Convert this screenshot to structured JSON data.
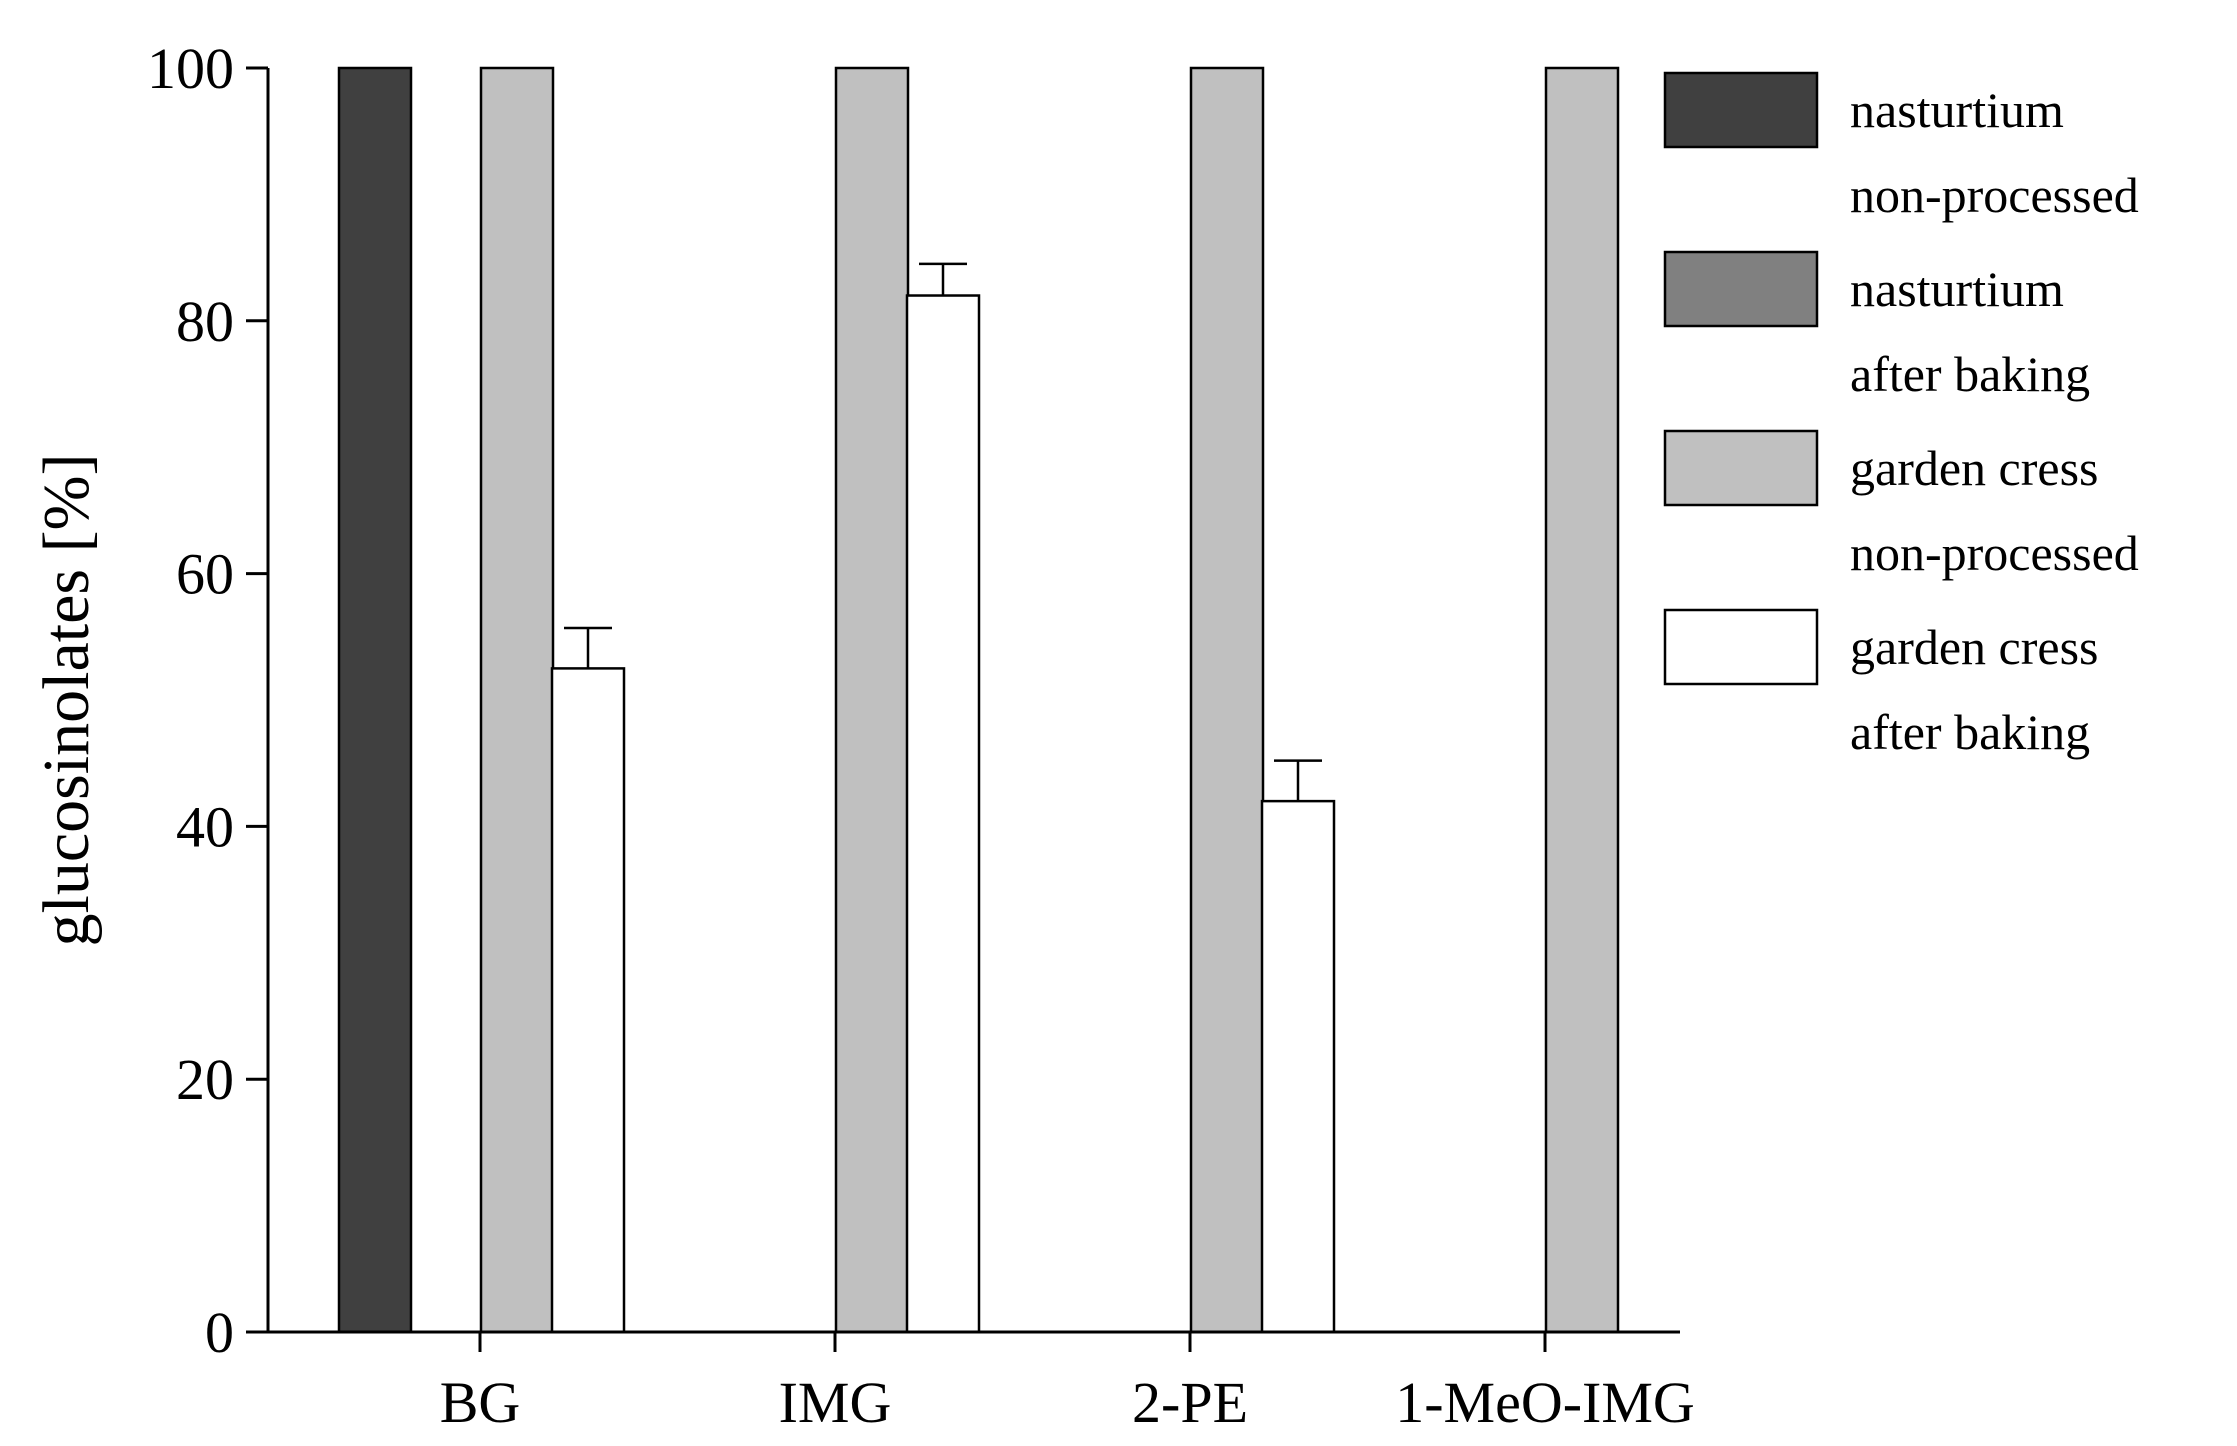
{
  "chart_data": {
    "type": "bar",
    "title": "",
    "xlabel": "",
    "ylabel": "glucosinolates [%]",
    "ylim": [
      0,
      100
    ],
    "yticks": [
      0,
      20,
      40,
      60,
      80,
      100
    ],
    "grid": false,
    "legend_position": "right",
    "categories": [
      "BG",
      "IMG",
      "2-PE",
      "1-MeO-IMG"
    ],
    "series": [
      {
        "name": "nasturtium non-processed",
        "legend_lines": [
          "nasturtium",
          "non-processed"
        ],
        "color": "#404040",
        "values": [
          100,
          null,
          null,
          null
        ],
        "errors": [
          null,
          null,
          null,
          null
        ]
      },
      {
        "name": "nasturtium after baking",
        "legend_lines": [
          "nasturtium",
          "after baking"
        ],
        "color": "#808080",
        "values": [
          0,
          null,
          null,
          null
        ],
        "errors": [
          null,
          null,
          null,
          null
        ]
      },
      {
        "name": "garden cress non-processed",
        "legend_lines": [
          "garden cress",
          "non-processed"
        ],
        "color": "#c0c0c0",
        "values": [
          100,
          100,
          100,
          100
        ],
        "errors": [
          null,
          null,
          null,
          null
        ]
      },
      {
        "name": "garden cress after baking",
        "legend_lines": [
          "garden cress",
          "after baking"
        ],
        "color": "#ffffff",
        "values": [
          52.5,
          82,
          42,
          0
        ],
        "errors": [
          3.2,
          2.5,
          3.2,
          null
        ]
      }
    ]
  }
}
